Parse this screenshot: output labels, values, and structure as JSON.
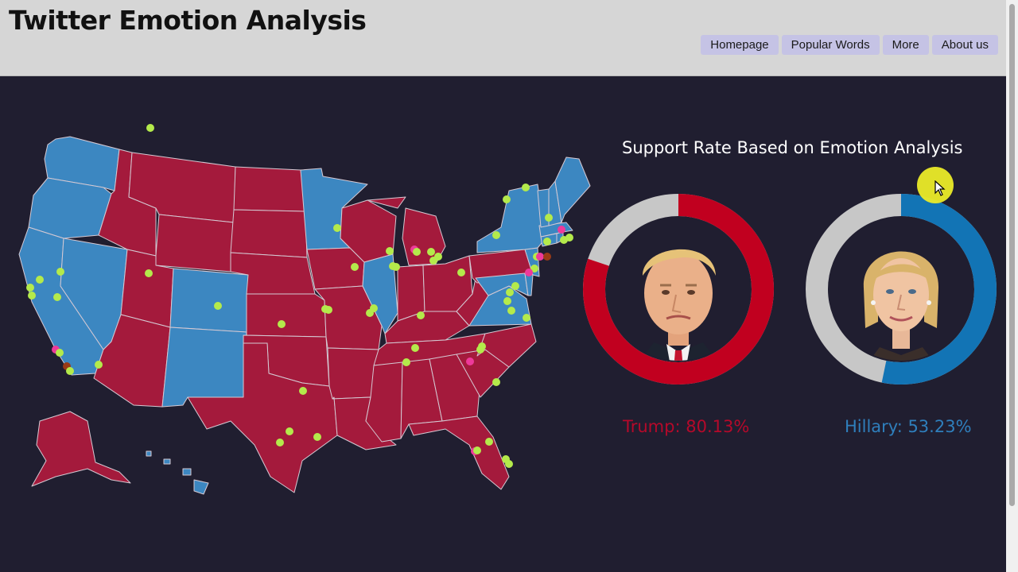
{
  "header": {
    "title": "Twitter Emotion Analysis",
    "nav": [
      {
        "label": "Homepage"
      },
      {
        "label": "Popular Words"
      },
      {
        "label": "More"
      },
      {
        "label": "About us"
      }
    ]
  },
  "map": {
    "colors": {
      "republican": "#a41a3c",
      "democrat": "#3c87c1",
      "state_border": "#d5c9d3",
      "tweet_positive": "#b4ea4b",
      "tweet_negative": "#ee3a9a",
      "tweet_neutral": "#9a3a16"
    },
    "red_states": [
      "MT",
      "ID",
      "WY",
      "UT",
      "AZ",
      "ND",
      "SD",
      "NE",
      "KS",
      "OK",
      "TX",
      "IA",
      "MO",
      "AR",
      "LA",
      "WI",
      "MI",
      "IN",
      "OH",
      "KY",
      "TN",
      "MS",
      "AL",
      "GA",
      "FL",
      "SC",
      "NC",
      "WV",
      "PA",
      "AK"
    ],
    "blue_states": [
      "WA",
      "OR",
      "CA",
      "NV",
      "CO",
      "NM",
      "MN",
      "IL",
      "VA",
      "MD",
      "DE",
      "NJ",
      "NY",
      "CT",
      "RI",
      "MA",
      "VT",
      "NH",
      "ME",
      "HI"
    ]
  },
  "support": {
    "title": "Support Rate Based on Emotion Analysis",
    "trump": {
      "label": "Trump: 80.13%",
      "rate": 0.8013,
      "color": "#c1001f",
      "track": "#c7c7c7",
      "portrait": "trump-portrait"
    },
    "hillary": {
      "label": "Hillary: 53.23%",
      "rate": 0.5323,
      "color": "#1274b5",
      "track": "#c7c7c7",
      "portrait": "hillary-portrait"
    }
  }
}
